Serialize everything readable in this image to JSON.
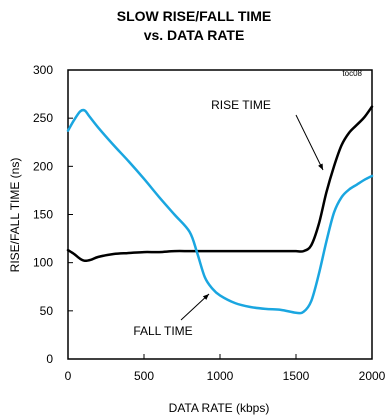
{
  "chart_data": {
    "type": "line",
    "title": "SLOW RISE/FALL TIME",
    "subtitle": "vs. DATA RATE",
    "tag": "toc08",
    "xlabel": "DATA RATE (kbps)",
    "ylabel": "RISE/FALL TIME (ns)",
    "xlim": [
      0,
      2000
    ],
    "ylim": [
      0,
      300
    ],
    "xticks": [
      0,
      500,
      1000,
      1500,
      2000
    ],
    "yticks": [
      0,
      50,
      100,
      150,
      200,
      250,
      300
    ],
    "grid": false,
    "series": [
      {
        "name": "RISE TIME",
        "color": "#000000",
        "x": [
          0,
          40,
          80,
          110,
          150,
          200,
          300,
          400,
          500,
          600,
          700,
          800,
          900,
          1000,
          1100,
          1200,
          1300,
          1400,
          1450,
          1500,
          1550,
          1600,
          1650,
          1700,
          1750,
          1800,
          1850,
          1900,
          1950,
          2000
        ],
        "y": [
          113,
          109,
          104,
          102,
          103,
          106,
          109,
          110,
          111,
          111,
          112,
          112,
          112,
          112,
          112,
          112,
          112,
          112,
          112,
          112,
          112,
          118,
          140,
          173,
          200,
          222,
          235,
          243,
          251,
          262
        ]
      },
      {
        "name": "FALL TIME",
        "color": "#1aa6e0",
        "x": [
          0,
          40,
          80,
          110,
          140,
          200,
          300,
          400,
          500,
          600,
          700,
          800,
          850,
          900,
          950,
          1000,
          1100,
          1200,
          1300,
          1400,
          1500,
          1550,
          1600,
          1650,
          1700,
          1750,
          1800,
          1850,
          1900,
          1950,
          2000
        ],
        "y": [
          237,
          248,
          257,
          258,
          252,
          240,
          222,
          205,
          187,
          168,
          150,
          132,
          110,
          85,
          73,
          66,
          58,
          54,
          52,
          51,
          48,
          49,
          60,
          88,
          122,
          152,
          168,
          176,
          181,
          186,
          190
        ]
      }
    ],
    "annotations": [
      {
        "text": "RISE TIME",
        "series": "RISE TIME"
      },
      {
        "text": "FALL TIME",
        "series": "FALL TIME"
      }
    ]
  }
}
